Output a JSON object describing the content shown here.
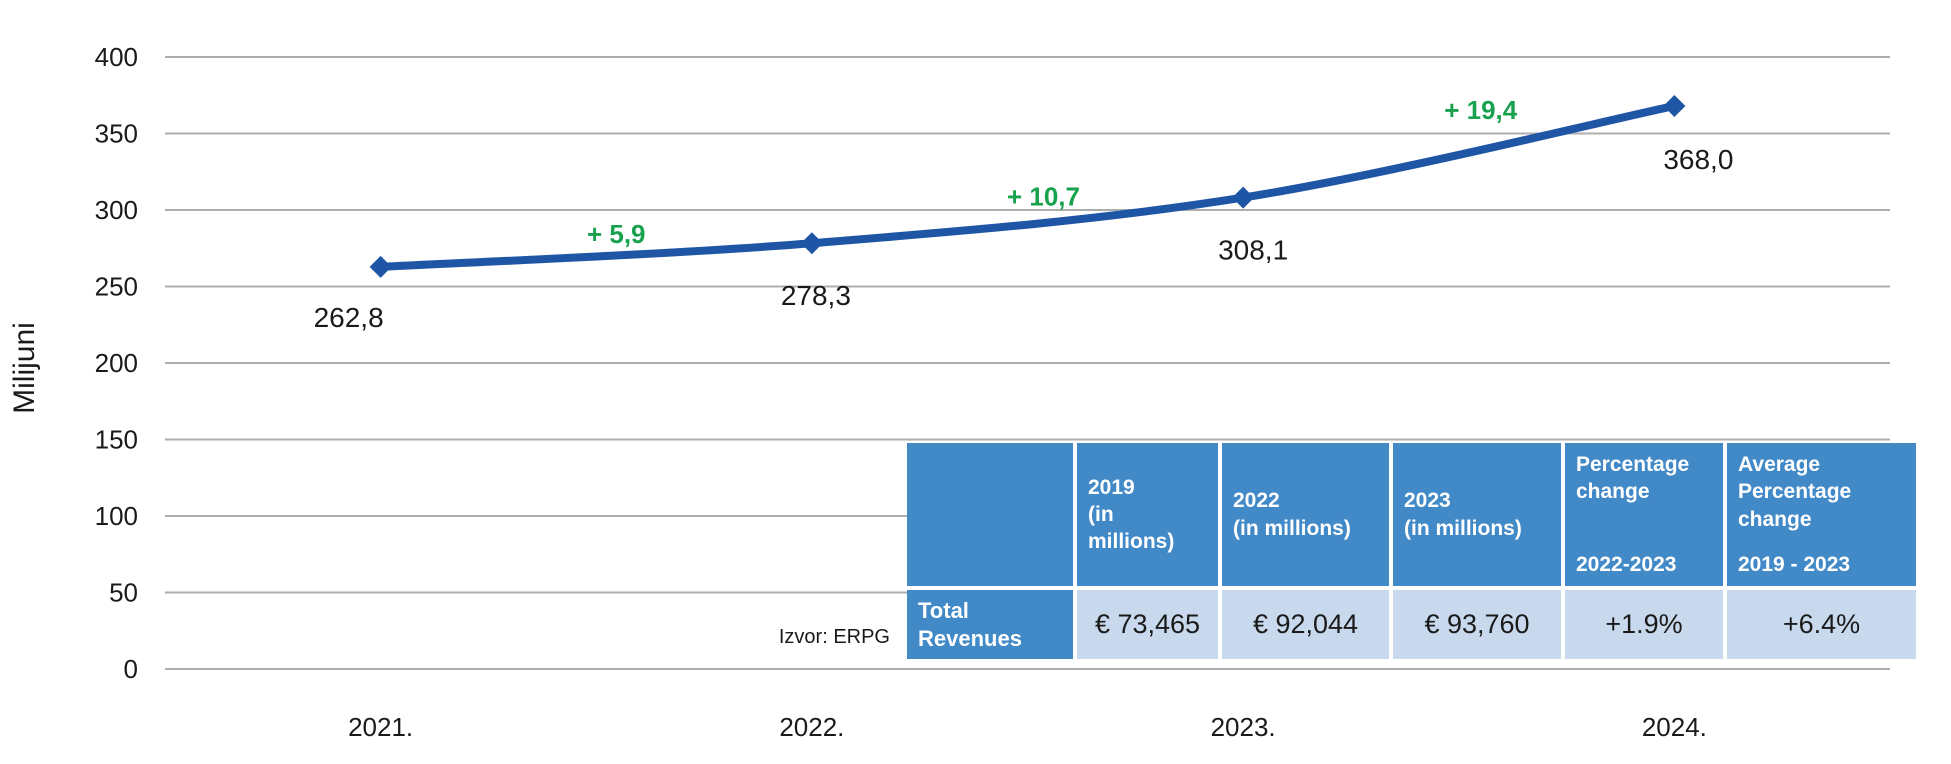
{
  "chart_data": {
    "type": "line",
    "x": [
      "2021.",
      "2022.",
      "2023.",
      "2024."
    ],
    "series": [
      {
        "name": "Revenues",
        "values": [
          262.8,
          278.3,
          308.1,
          368.0
        ]
      }
    ],
    "point_labels": [
      "262,8",
      "278,3",
      "308,1",
      "368,0"
    ],
    "change_labels": [
      "+ 5,9",
      "+ 10,7",
      "+ 19,4"
    ],
    "change_values": [
      5.9,
      10.7,
      19.4
    ],
    "ylabel": "Milijuni",
    "xlabel": "",
    "title": "",
    "ylim": [
      0,
      400
    ],
    "ytick_step": 50,
    "grid": true,
    "legend": "none",
    "marker": "diamond"
  },
  "source_note": "Izvor: ERPG",
  "table": {
    "headers": [
      {
        "title": "",
        "subtitle": ""
      },
      {
        "title": "2019\n(in\nmillions)",
        "subtitle": ""
      },
      {
        "title": "2022\n(in millions)",
        "subtitle": ""
      },
      {
        "title": "2023\n(in millions)",
        "subtitle": ""
      },
      {
        "title": "Percentage\nchange",
        "subtitle": "2022-2023"
      },
      {
        "title": "Average\nPercentage\nchange",
        "subtitle": "2019 - 2023"
      }
    ],
    "row": {
      "label": "Total\nRevenues",
      "values": [
        "€ 73,465",
        "€ 92,044",
        "€ 93,760",
        "+1.9%",
        "+6.4%"
      ]
    }
  },
  "colors": {
    "line": "#1F55A5",
    "green": "#18A24E",
    "grid": "#ADADAD",
    "table_header_bg": "#4289C8",
    "table_cell_bg": "#C9D9ED",
    "header_text": "#FFFFFF",
    "text": "#1A1A1A"
  }
}
